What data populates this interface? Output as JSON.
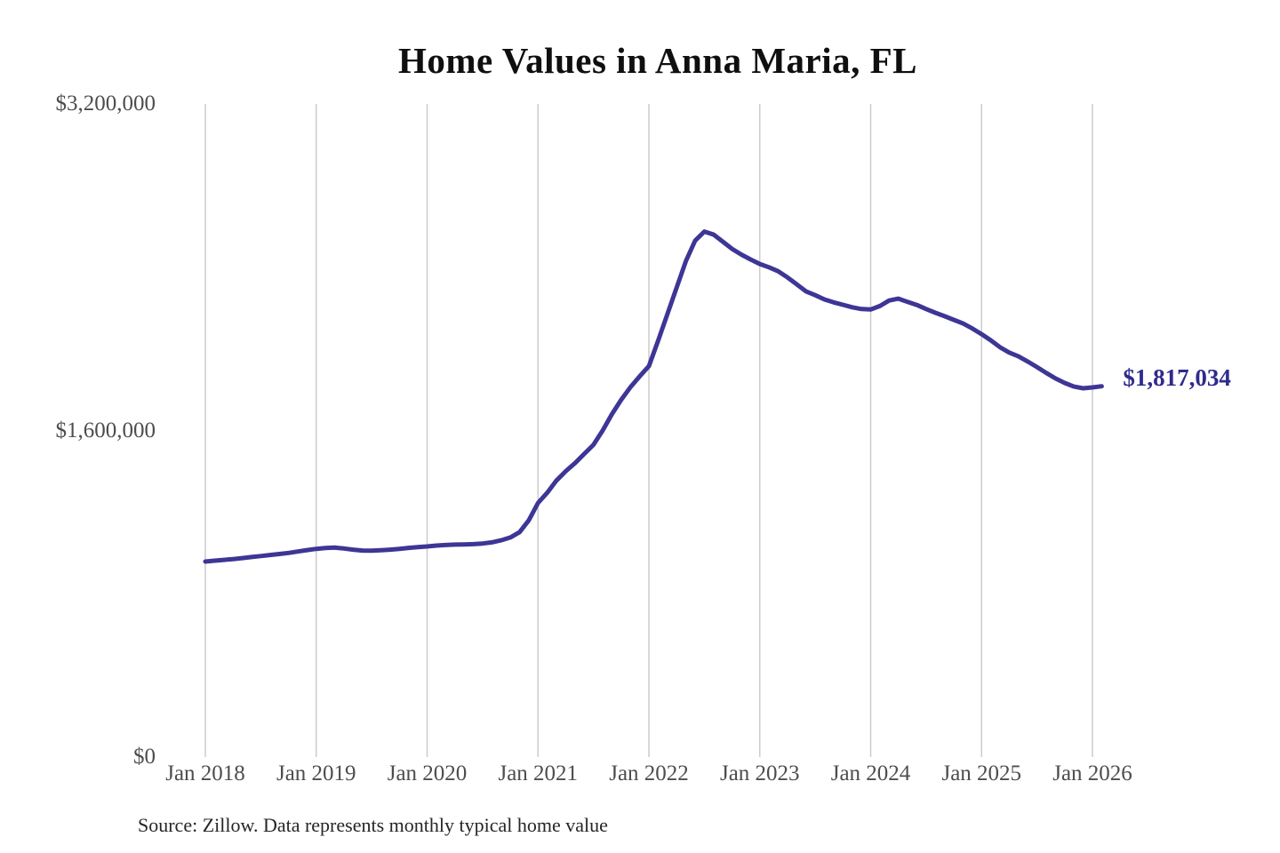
{
  "chart": {
    "title": "Home Values in Anna Maria, FL",
    "end_label": "$1,817,034",
    "source": "Source: Zillow. Data represents monthly typical home value"
  },
  "colors": {
    "background": "#ffffff",
    "line": "#3d3695",
    "end_label_text": "#2f2b8d",
    "gridline": "#cccccc",
    "axis_text": "#4d4d4d",
    "title_text": "#0f0f0f",
    "source_text": "#262626"
  },
  "chart_data": {
    "type": "line",
    "title": "Home Values in Anna Maria, FL",
    "xlabel": "",
    "ylabel": "",
    "ylim": [
      0,
      3200000
    ],
    "grid": "vertical-only",
    "legend": "none",
    "series_name": "Monthly typical home value",
    "y_ticks": [
      {
        "value": 3200000,
        "label": "$3,200,000"
      },
      {
        "value": 1600000,
        "label": "$1,600,000"
      },
      {
        "value": 0,
        "label": "$0"
      }
    ],
    "x_ticks": [
      {
        "year": 2018,
        "label": "Jan 2018"
      },
      {
        "year": 2019,
        "label": "Jan 2019"
      },
      {
        "year": 2020,
        "label": "Jan 2020"
      },
      {
        "year": 2021,
        "label": "Jan 2021"
      },
      {
        "year": 2022,
        "label": "Jan 2022"
      },
      {
        "year": 2023,
        "label": "Jan 2023"
      },
      {
        "year": 2024,
        "label": "Jan 2024"
      },
      {
        "year": 2025,
        "label": "Jan 2025"
      },
      {
        "year": 2026,
        "label": "Jan 2026"
      }
    ],
    "points": {
      "start_date": "2018-01",
      "frequency": "monthly",
      "values": [
        958000,
        962000,
        966000,
        970000,
        975000,
        980000,
        985000,
        990000,
        995000,
        1000000,
        1007000,
        1014000,
        1020000,
        1024000,
        1026000,
        1022000,
        1016000,
        1012000,
        1011000,
        1013000,
        1016000,
        1020000,
        1025000,
        1029000,
        1032000,
        1036000,
        1039000,
        1041000,
        1042000,
        1043000,
        1046000,
        1052000,
        1062000,
        1076000,
        1102000,
        1160000,
        1245000,
        1295000,
        1355000,
        1400000,
        1440000,
        1485000,
        1530000,
        1600000,
        1680000,
        1750000,
        1812000,
        1865000,
        1915000,
        2040000,
        2170000,
        2300000,
        2430000,
        2530000,
        2575000,
        2560000,
        2525000,
        2490000,
        2462000,
        2438000,
        2416000,
        2400000,
        2380000,
        2350000,
        2316000,
        2282000,
        2263000,
        2242000,
        2228000,
        2216000,
        2204000,
        2195000,
        2193000,
        2210000,
        2237000,
        2246000,
        2230000,
        2215000,
        2195000,
        2177000,
        2160000,
        2142000,
        2124000,
        2100000,
        2072000,
        2042000,
        2008000,
        1982000,
        1963000,
        1938000,
        1911000,
        1882000,
        1855000,
        1833000,
        1815000,
        1807000,
        1811000,
        1817034
      ]
    },
    "final_point": {
      "date": "2026-02",
      "value": 1817034,
      "label": "$1,817,034"
    }
  }
}
